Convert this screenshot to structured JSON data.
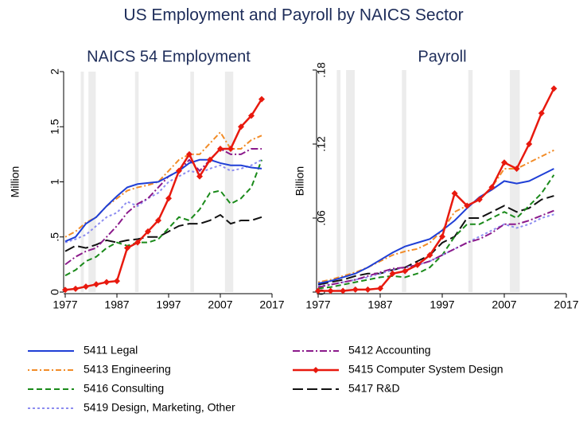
{
  "title": "US Employment and Payroll by NAICS Sector",
  "recessions": [
    [
      1980,
      1980.6
    ],
    [
      1981.5,
      1982.9
    ],
    [
      1990.5,
      1991.2
    ],
    [
      2001.2,
      2001.9
    ],
    [
      2007.9,
      2009.5
    ]
  ],
  "chart_data": [
    {
      "type": "line",
      "title": "NAICS 54 Employment",
      "y_label": "Million",
      "x": [
        1977,
        1979,
        1981,
        1983,
        1985,
        1987,
        1989,
        1991,
        1993,
        1995,
        1997,
        1999,
        2001,
        2003,
        2005,
        2007,
        2009,
        2011,
        2013,
        2015
      ],
      "xlim": [
        1977,
        2017
      ],
      "xticks": [
        1977,
        1987,
        1997,
        2007,
        2017
      ],
      "ylim": [
        0,
        2
      ],
      "yticks": [
        0,
        {
          "value": 0.5,
          "label": ".5"
        },
        1,
        1.5,
        2
      ],
      "series": [
        {
          "name": "5411 Legal",
          "color": "#1f3fd6",
          "values": [
            0.46,
            0.5,
            0.62,
            0.68,
            0.78,
            0.87,
            0.95,
            0.98,
            0.99,
            1.0,
            1.05,
            1.1,
            1.17,
            1.2,
            1.2,
            1.17,
            1.15,
            1.15,
            1.13,
            1.12
          ]
        },
        {
          "name": "5412 Accounting",
          "color": "#8b1a8b",
          "values": [
            0.25,
            0.32,
            0.37,
            0.4,
            0.5,
            0.6,
            0.72,
            0.8,
            0.85,
            0.95,
            1.05,
            1.1,
            1.2,
            1.1,
            1.2,
            1.3,
            1.25,
            1.25,
            1.3,
            1.3
          ]
        },
        {
          "name": "5413 Engineering",
          "color": "#f28c28",
          "values": [
            0.5,
            0.55,
            0.63,
            0.68,
            0.78,
            0.85,
            0.92,
            0.95,
            0.97,
            1.0,
            1.1,
            1.2,
            1.25,
            1.25,
            1.35,
            1.45,
            1.3,
            1.3,
            1.38,
            1.42
          ]
        },
        {
          "name": "5415 Computer System Design",
          "color": "#e8190e",
          "values": [
            0.02,
            0.03,
            0.05,
            0.07,
            0.09,
            0.1,
            0.4,
            0.45,
            0.55,
            0.65,
            0.85,
            1.1,
            1.25,
            1.05,
            1.2,
            1.3,
            1.3,
            1.5,
            1.6,
            1.75
          ]
        },
        {
          "name": "5416 Consulting",
          "color": "#1a8a1a",
          "values": [
            0.15,
            0.2,
            0.28,
            0.32,
            0.4,
            0.45,
            0.42,
            0.45,
            0.45,
            0.48,
            0.58,
            0.68,
            0.65,
            0.75,
            0.9,
            0.92,
            0.8,
            0.85,
            0.95,
            1.2
          ]
        },
        {
          "name": "5417 R&D",
          "color": "#111111",
          "values": [
            0.37,
            0.42,
            0.4,
            0.43,
            0.47,
            0.45,
            0.47,
            0.48,
            0.5,
            0.5,
            0.55,
            0.6,
            0.62,
            0.62,
            0.65,
            0.7,
            0.62,
            0.65,
            0.65,
            0.68
          ]
        },
        {
          "name": "5419 Design, Marketing, Other",
          "color": "#8c8cf0",
          "values": [
            0.45,
            0.48,
            0.52,
            0.6,
            0.68,
            0.72,
            0.82,
            0.78,
            0.85,
            0.9,
            1.0,
            1.05,
            1.1,
            1.08,
            1.12,
            1.15,
            1.1,
            1.12,
            1.15,
            1.2
          ]
        }
      ]
    },
    {
      "type": "line",
      "title": "Payroll",
      "y_label": "Billion",
      "x": [
        1977,
        1979,
        1981,
        1983,
        1985,
        1987,
        1989,
        1991,
        1993,
        1995,
        1997,
        1999,
        2001,
        2003,
        2005,
        2007,
        2009,
        2011,
        2013,
        2015
      ],
      "xlim": [
        1977,
        2017
      ],
      "xticks": [
        1977,
        1987,
        1997,
        2007,
        2017
      ],
      "ylim": [
        0,
        0.18
      ],
      "yticks": [
        0,
        {
          "value": 0.06,
          "label": ".06"
        },
        {
          "value": 0.12,
          "label": ".12"
        },
        {
          "value": 0.18,
          "label": ".18"
        }
      ],
      "series": [
        {
          "color": "#1f3fd6",
          "values": [
            0.007,
            0.009,
            0.012,
            0.015,
            0.02,
            0.026,
            0.032,
            0.037,
            0.04,
            0.043,
            0.05,
            0.058,
            0.068,
            0.077,
            0.083,
            0.09,
            0.088,
            0.09,
            0.095,
            0.1
          ]
        },
        {
          "color": "#8b1a8b",
          "values": [
            0.004,
            0.006,
            0.008,
            0.01,
            0.013,
            0.016,
            0.019,
            0.02,
            0.022,
            0.025,
            0.03,
            0.035,
            0.04,
            0.043,
            0.048,
            0.055,
            0.055,
            0.058,
            0.062,
            0.066
          ]
        },
        {
          "color": "#f28c28",
          "values": [
            0.008,
            0.01,
            0.013,
            0.016,
            0.02,
            0.025,
            0.03,
            0.033,
            0.035,
            0.04,
            0.05,
            0.065,
            0.07,
            0.075,
            0.085,
            0.1,
            0.1,
            0.105,
            0.11,
            0.115
          ]
        },
        {
          "color": "#e8190e",
          "values": [
            0.001,
            0.001,
            0.001,
            0.002,
            0.002,
            0.003,
            0.015,
            0.017,
            0.022,
            0.03,
            0.045,
            0.08,
            0.07,
            0.075,
            0.085,
            0.105,
            0.1,
            0.12,
            0.145,
            0.165
          ]
        },
        {
          "color": "#1a8a1a",
          "values": [
            0.003,
            0.004,
            0.006,
            0.008,
            0.01,
            0.012,
            0.013,
            0.012,
            0.015,
            0.02,
            0.03,
            0.045,
            0.055,
            0.055,
            0.06,
            0.065,
            0.06,
            0.07,
            0.08,
            0.095
          ]
        },
        {
          "color": "#111111",
          "values": [
            0.006,
            0.008,
            0.01,
            0.013,
            0.015,
            0.015,
            0.018,
            0.02,
            0.025,
            0.03,
            0.04,
            0.045,
            0.06,
            0.06,
            0.065,
            0.07,
            0.065,
            0.068,
            0.075,
            0.078
          ]
        },
        {
          "color": "#8c8cf0",
          "values": [
            0.005,
            0.006,
            0.008,
            0.01,
            0.012,
            0.015,
            0.018,
            0.02,
            0.022,
            0.025,
            0.03,
            0.035,
            0.04,
            0.045,
            0.05,
            0.055,
            0.052,
            0.055,
            0.06,
            0.063
          ]
        }
      ]
    }
  ]
}
